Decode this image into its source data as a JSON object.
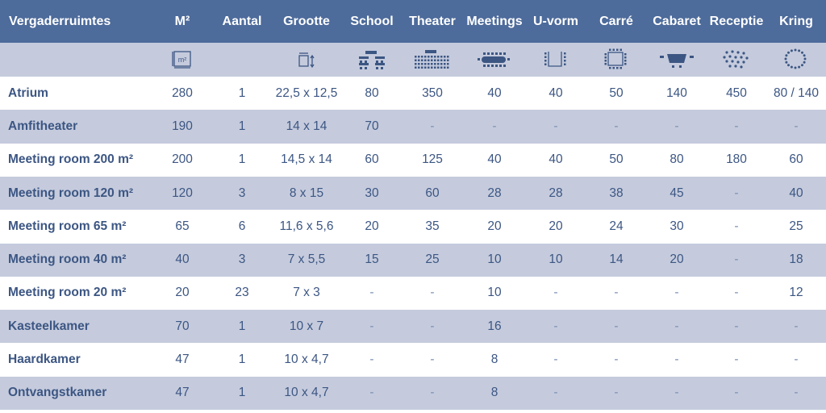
{
  "headers": [
    "Vergaderruimtes",
    "M²",
    "Aantal",
    "Grootte",
    "School",
    "Theater",
    "Meetings",
    "U-vorm",
    "Carré",
    "Cabaret",
    "Receptie",
    "Kring"
  ],
  "icons": [
    {
      "col": 1,
      "name": "square-meter-icon",
      "label": "m²"
    },
    {
      "col": 3,
      "name": "room-dimensions-icon"
    },
    {
      "col": 4,
      "name": "school-layout-icon"
    },
    {
      "col": 5,
      "name": "theater-layout-icon"
    },
    {
      "col": 6,
      "name": "meetings-layout-icon"
    },
    {
      "col": 7,
      "name": "u-shape-layout-icon"
    },
    {
      "col": 8,
      "name": "carre-layout-icon"
    },
    {
      "col": 9,
      "name": "cabaret-layout-icon"
    },
    {
      "col": 10,
      "name": "reception-layout-icon"
    },
    {
      "col": 11,
      "name": "circle-layout-icon"
    }
  ],
  "rows": [
    [
      "Atrium",
      "280",
      "1",
      "22,5 x 12,5",
      "80",
      "350",
      "40",
      "40",
      "50",
      "140",
      "450",
      "80 / 140"
    ],
    [
      "Amfitheater",
      "190",
      "1",
      "14 x 14",
      "70",
      "-",
      "-",
      "-",
      "-",
      "-",
      "-",
      "-"
    ],
    [
      "Meeting room 200 m²",
      "200",
      "1",
      "14,5 x 14",
      "60",
      "125",
      "40",
      "40",
      "50",
      "80",
      "180",
      "60"
    ],
    [
      "Meeting room 120 m²",
      "120",
      "3",
      "8 x 15",
      "30",
      "60",
      "28",
      "28",
      "38",
      "45",
      "-",
      "40"
    ],
    [
      "Meeting room 65 m²",
      "65",
      "6",
      "11,6 x 5,6",
      "20",
      "35",
      "20",
      "20",
      "24",
      "30",
      "-",
      "25"
    ],
    [
      "Meeting room 40 m²",
      "40",
      "3",
      "7 x 5,5",
      "15",
      "25",
      "10",
      "10",
      "14",
      "20",
      "-",
      "18"
    ],
    [
      "Meeting room 20 m²",
      "20",
      "23",
      "7 x 3",
      "-",
      "-",
      "10",
      "-",
      "-",
      "-",
      "-",
      "12"
    ],
    [
      "Kasteelkamer",
      "70",
      "1",
      "10 x 7",
      "-",
      "-",
      "16",
      "-",
      "-",
      "-",
      "-",
      "-"
    ],
    [
      "Haardkamer",
      "47",
      "1",
      "10 x 4,7",
      "-",
      "-",
      "8",
      "-",
      "-",
      "-",
      "-",
      "-"
    ],
    [
      "Ontvangstkamer",
      "47",
      "1",
      "10 x 4,7",
      "-",
      "-",
      "8",
      "-",
      "-",
      "-",
      "-",
      "-"
    ]
  ],
  "colors": {
    "header_bg": "#4d6b9b",
    "band_bg": "#c5cbdd",
    "text": "#3c5683",
    "header_text": "#ffffff"
  }
}
